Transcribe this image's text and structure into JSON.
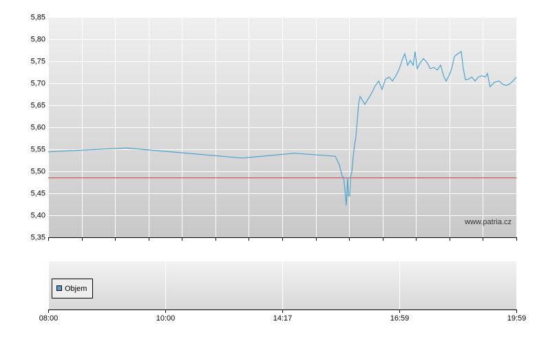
{
  "chart_data": {
    "type": "line",
    "watermark": "www.patria.cz",
    "legend_label": "Objem",
    "legend_color": "#4f9fcf",
    "reference_line": 5.485,
    "reference_color": "#d04040",
    "grid": true,
    "xlim": [
      0,
      4
    ],
    "xticks": [
      {
        "value": 0,
        "label": "08:00"
      },
      {
        "value": 1,
        "label": "10:00"
      },
      {
        "value": 2,
        "label": "14:17"
      },
      {
        "value": 3,
        "label": "16:59"
      },
      {
        "value": 4,
        "label": "19:59"
      }
    ],
    "ylim": [
      5.35,
      5.85
    ],
    "yticks": [
      {
        "value": 5.35,
        "label": "5,35"
      },
      {
        "value": 5.4,
        "label": "5,40"
      },
      {
        "value": 5.45,
        "label": "5,45"
      },
      {
        "value": 5.5,
        "label": "5,50"
      },
      {
        "value": 5.55,
        "label": "5,55"
      },
      {
        "value": 5.6,
        "label": "5,60"
      },
      {
        "value": 5.65,
        "label": "5,65"
      },
      {
        "value": 5.7,
        "label": "5,70"
      },
      {
        "value": 5.75,
        "label": "5,75"
      },
      {
        "value": 5.8,
        "label": "5,80"
      },
      {
        "value": 5.85,
        "label": "5,85"
      }
    ],
    "series": [
      {
        "color": "#4aa3cf",
        "x": [
          0,
          0.665,
          1.659,
          2.106,
          2.453,
          2.488,
          2.512,
          2.524,
          2.535,
          2.547,
          2.559,
          2.565,
          2.576,
          2.582,
          2.594,
          2.606,
          2.618,
          2.629,
          2.641,
          2.653,
          2.665,
          2.706,
          2.765,
          2.794,
          2.824,
          2.853,
          2.882,
          2.912,
          2.941,
          2.971,
          3.0,
          3.029,
          3.047,
          3.071,
          3.094,
          3.118,
          3.135,
          3.153,
          3.176,
          3.206,
          3.235,
          3.265,
          3.294,
          3.324,
          3.353,
          3.382,
          3.4,
          3.424,
          3.447,
          3.471,
          3.5,
          3.529,
          3.547,
          3.565,
          3.588,
          3.618,
          3.647,
          3.676,
          3.706,
          3.735,
          3.753,
          3.776,
          3.812,
          3.853,
          3.882,
          3.912,
          3.941,
          3.971,
          4
        ],
        "values": [
          5.544,
          5.553,
          5.53,
          5.541,
          5.534,
          5.514,
          5.489,
          5.486,
          5.459,
          5.422,
          5.486,
          5.444,
          5.444,
          5.486,
          5.498,
          5.533,
          5.561,
          5.577,
          5.616,
          5.655,
          5.67,
          5.652,
          5.678,
          5.694,
          5.705,
          5.686,
          5.709,
          5.714,
          5.705,
          5.717,
          5.733,
          5.756,
          5.767,
          5.741,
          5.752,
          5.741,
          5.772,
          5.733,
          5.745,
          5.756,
          5.748,
          5.733,
          5.736,
          5.73,
          5.741,
          5.714,
          5.705,
          5.717,
          5.733,
          5.761,
          5.767,
          5.772,
          5.733,
          5.708,
          5.709,
          5.714,
          5.705,
          5.714,
          5.717,
          5.714,
          5.722,
          5.692,
          5.702,
          5.705,
          5.698,
          5.695,
          5.698,
          5.705,
          5.714
        ]
      }
    ]
  }
}
